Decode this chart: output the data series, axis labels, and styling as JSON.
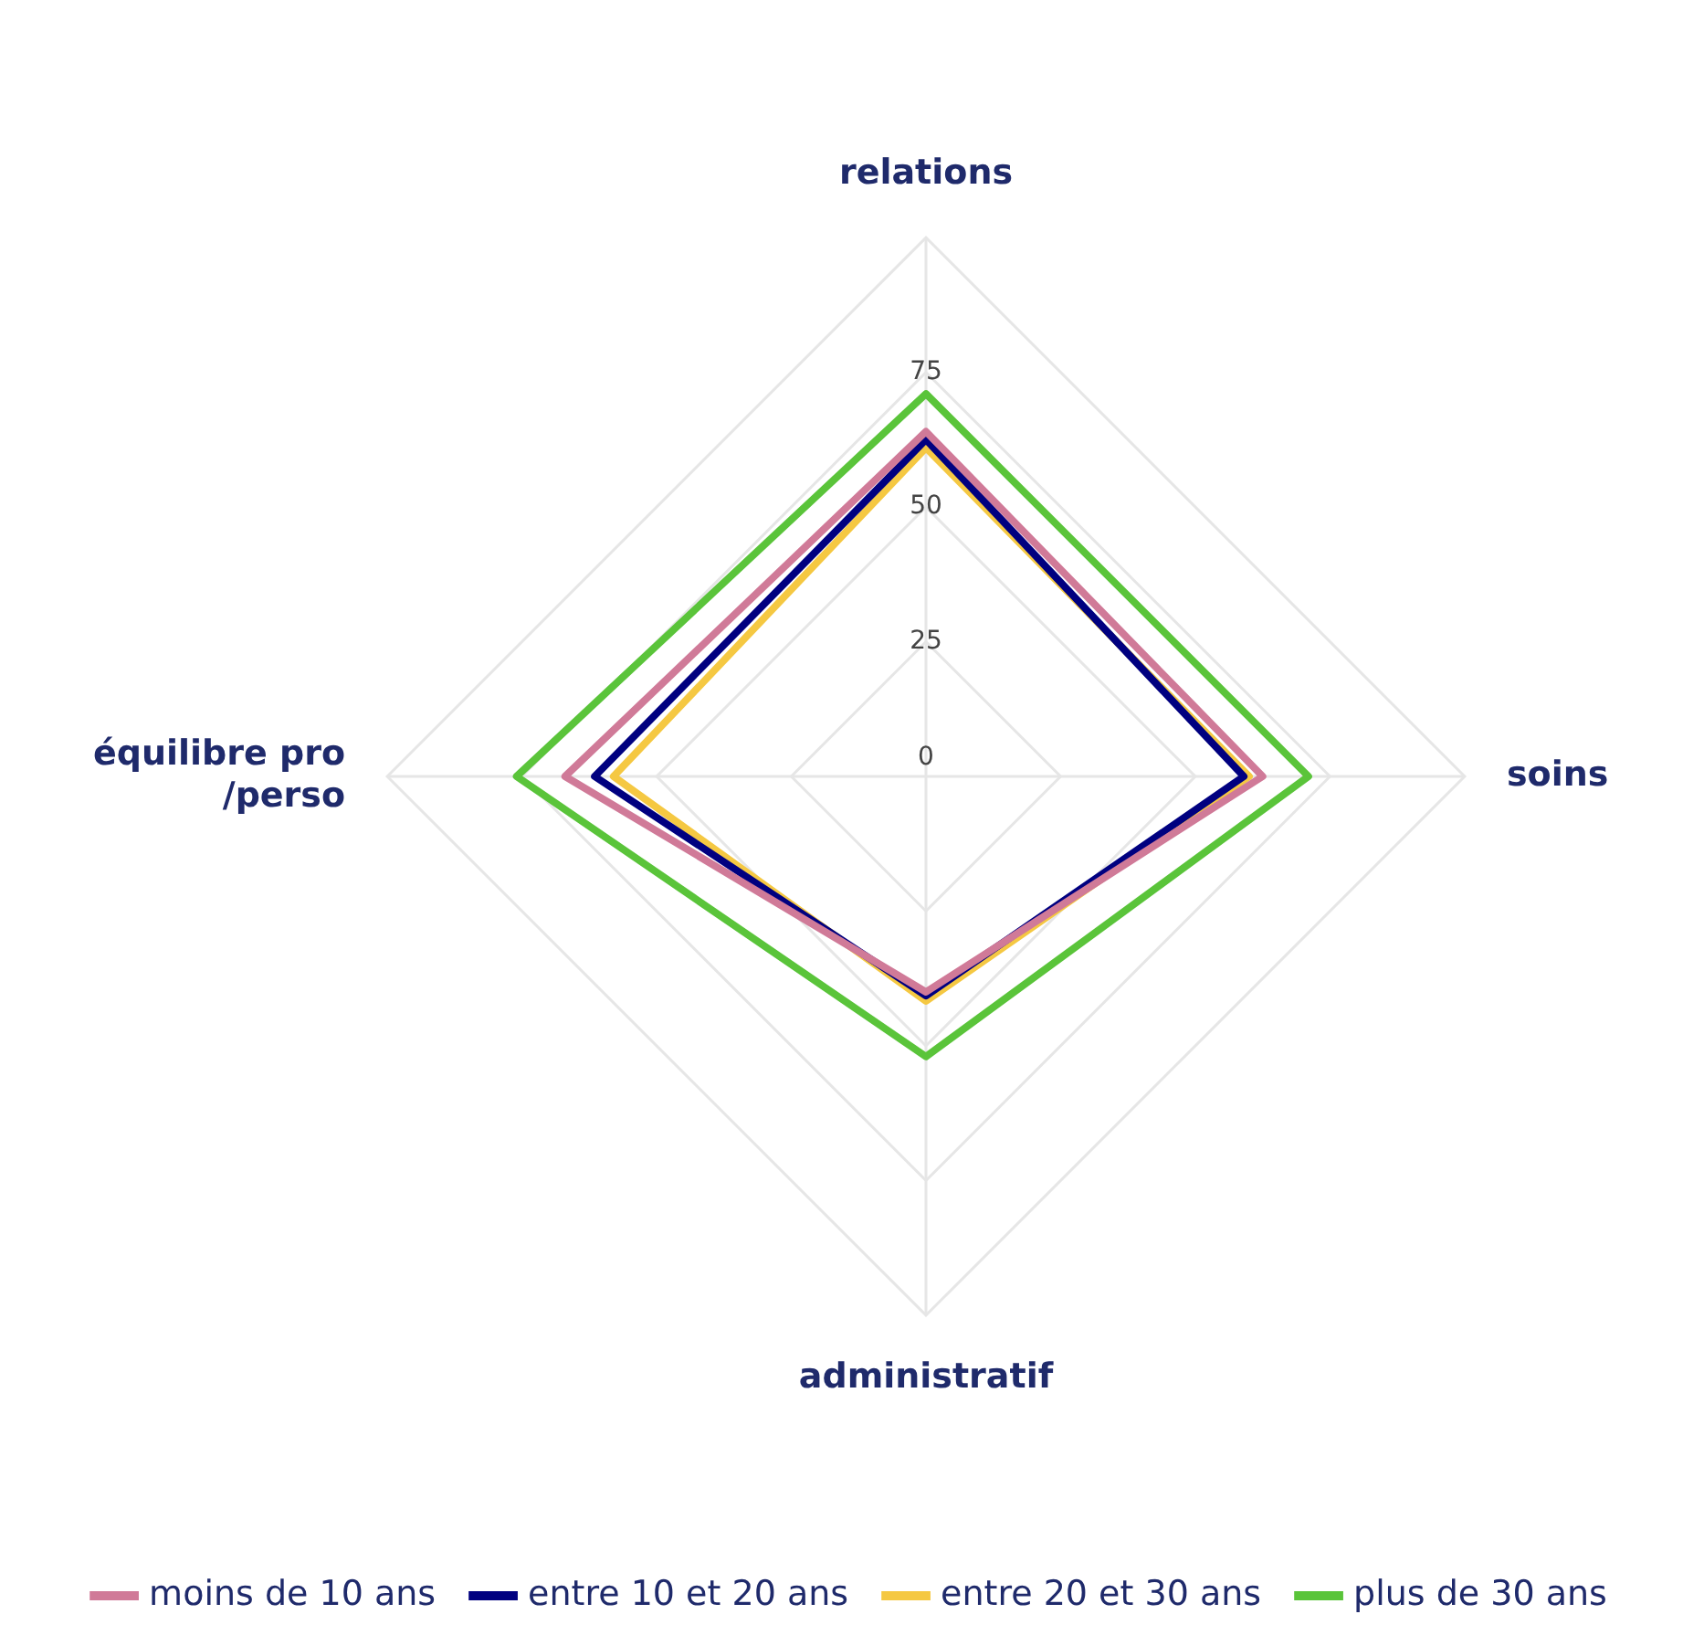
{
  "chart_data": {
    "type": "radar",
    "categories": [
      "relations",
      "soins",
      "administratif",
      "équilibre pro /perso"
    ],
    "ylim": [
      0,
      100
    ],
    "yticks": [
      0,
      25,
      50,
      75
    ],
    "grid": true,
    "legend": "bottom",
    "marker": "none",
    "line_style": "solid",
    "series": [
      {
        "name": "moins de 10 ans",
        "color": "#d07a98",
        "values": [
          64,
          62.5,
          40,
          67
        ]
      },
      {
        "name": "entre 10 et 20 ans",
        "color": "#000080",
        "values": [
          62.5,
          59,
          40.7,
          61.5
        ]
      },
      {
        "name": "entre 20 et 30 ans",
        "color": "#f5c842",
        "values": [
          61,
          60,
          41.7,
          58
        ]
      },
      {
        "name": "plus de 30 ans",
        "color": "#5ac43a",
        "values": [
          71,
          71,
          52,
          76
        ]
      }
    ]
  }
}
